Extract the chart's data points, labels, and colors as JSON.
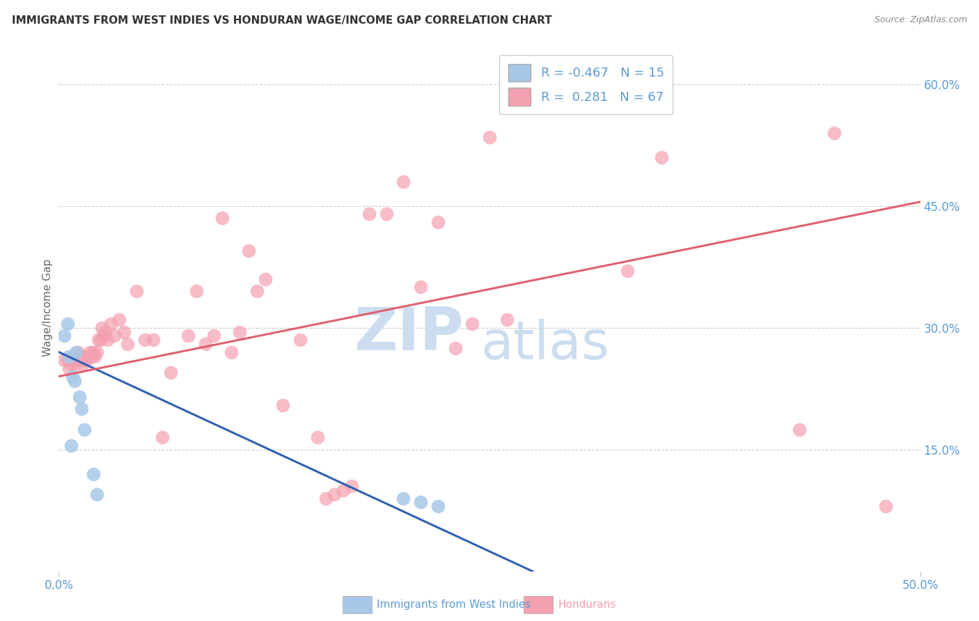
{
  "title": "IMMIGRANTS FROM WEST INDIES VS HONDURAN WAGE/INCOME GAP CORRELATION CHART",
  "source": "Source: ZipAtlas.com",
  "tick_color": "#5b9bd5",
  "ylabel": "Wage/Income Gap",
  "xlim": [
    0.0,
    0.5
  ],
  "ylim": [
    -0.02,
    0.65
  ],
  "plot_ylim": [
    0.0,
    0.65
  ],
  "xtick_positions": [
    0.0,
    0.5
  ],
  "xtick_labels": [
    "0.0%",
    "50.0%"
  ],
  "ytick_right_labels": [
    "15.0%",
    "30.0%",
    "45.0%",
    "60.0%"
  ],
  "ytick_right_values": [
    0.15,
    0.3,
    0.45,
    0.6
  ],
  "blue_R": -0.467,
  "blue_N": 15,
  "pink_R": 0.281,
  "pink_N": 67,
  "blue_color": "#a8c8e8",
  "pink_color": "#f4a0b0",
  "blue_line_color": "#3060b0",
  "pink_line_color": "#e06070",
  "watermark_zip": "ZIP",
  "watermark_atlas": "atlas",
  "watermark_color": "#ccddf0",
  "blue_scatter_x": [
    0.003,
    0.005,
    0.006,
    0.007,
    0.008,
    0.009,
    0.01,
    0.012,
    0.013,
    0.015,
    0.02,
    0.022,
    0.2,
    0.21,
    0.22
  ],
  "blue_scatter_y": [
    0.29,
    0.305,
    0.265,
    0.155,
    0.24,
    0.235,
    0.27,
    0.215,
    0.2,
    0.175,
    0.12,
    0.095,
    0.09,
    0.085,
    0.08
  ],
  "pink_scatter_x": [
    0.003,
    0.005,
    0.006,
    0.007,
    0.008,
    0.009,
    0.01,
    0.011,
    0.012,
    0.013,
    0.014,
    0.015,
    0.015,
    0.016,
    0.017,
    0.018,
    0.019,
    0.02,
    0.021,
    0.022,
    0.023,
    0.024,
    0.025,
    0.026,
    0.027,
    0.028,
    0.03,
    0.032,
    0.035,
    0.038,
    0.04,
    0.045,
    0.05,
    0.055,
    0.06,
    0.065,
    0.075,
    0.08,
    0.085,
    0.09,
    0.095,
    0.1,
    0.105,
    0.11,
    0.115,
    0.12,
    0.13,
    0.14,
    0.15,
    0.155,
    0.16,
    0.165,
    0.17,
    0.18,
    0.19,
    0.2,
    0.21,
    0.22,
    0.23,
    0.24,
    0.25,
    0.26,
    0.33,
    0.35,
    0.43,
    0.45,
    0.48
  ],
  "pink_scatter_y": [
    0.26,
    0.26,
    0.25,
    0.255,
    0.265,
    0.26,
    0.255,
    0.27,
    0.265,
    0.265,
    0.255,
    0.26,
    0.265,
    0.26,
    0.265,
    0.27,
    0.265,
    0.27,
    0.265,
    0.27,
    0.285,
    0.285,
    0.3,
    0.29,
    0.295,
    0.285,
    0.305,
    0.29,
    0.31,
    0.295,
    0.28,
    0.345,
    0.285,
    0.285,
    0.165,
    0.245,
    0.29,
    0.345,
    0.28,
    0.29,
    0.435,
    0.27,
    0.295,
    0.395,
    0.345,
    0.36,
    0.205,
    0.285,
    0.165,
    0.09,
    0.095,
    0.1,
    0.105,
    0.44,
    0.44,
    0.48,
    0.35,
    0.43,
    0.275,
    0.305,
    0.535,
    0.31,
    0.37,
    0.51,
    0.175,
    0.54,
    0.08
  ],
  "blue_line_x0": 0.0,
  "blue_line_x1": 0.275,
  "blue_line_y0": 0.27,
  "blue_line_y1": 0.0,
  "pink_line_x0": 0.0,
  "pink_line_x1": 0.5,
  "pink_line_y0": 0.24,
  "pink_line_y1": 0.455,
  "grid_color": "#cccccc",
  "background_color": "#ffffff",
  "legend_label_blue": "Immigrants from West Indies",
  "legend_label_pink": "Hondurans"
}
